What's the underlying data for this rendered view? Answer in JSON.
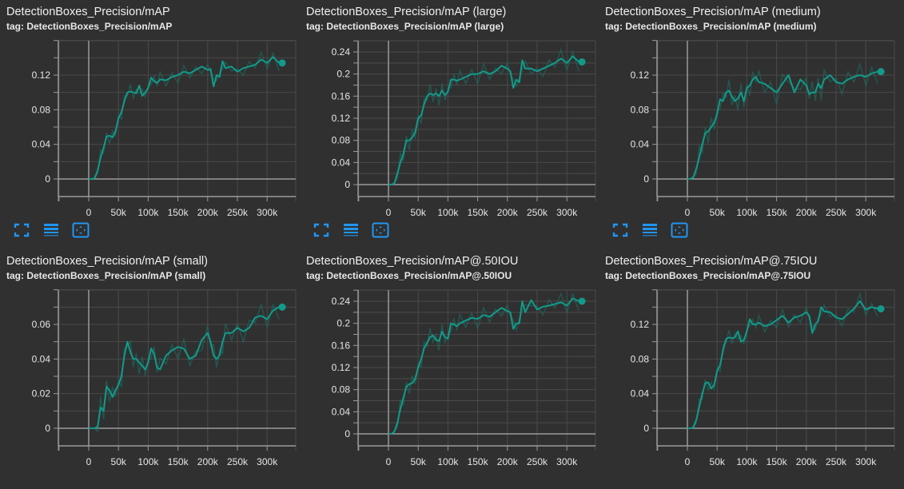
{
  "colors": {
    "background": "#303030",
    "line": "#129a8a",
    "line_raw": "#1a6e63",
    "grid": "#4a4a4a",
    "axis": "#9a9a9a",
    "text": "#e6e6e6",
    "icon": "#2196f3"
  },
  "icons": [
    "fullscreen-icon",
    "data-table-icon",
    "fit-domain-icon"
  ],
  "chart_data": [
    {
      "type": "line",
      "title": "DetectionBoxes_Precision/mAP",
      "tag": "tag: DetectionBoxes_Precision/mAP",
      "xlabel": "",
      "ylabel": "",
      "xticks": [
        "0",
        "50k",
        "100k",
        "150k",
        "200k",
        "250k",
        "300k"
      ],
      "yticks": [
        "0",
        "0.04",
        "0.08",
        "0.12"
      ],
      "ytick_values": [
        0,
        0.04,
        0.08,
        0.12
      ],
      "ylim": [
        -0.02,
        0.15
      ],
      "xlim": [
        -50000,
        350000
      ],
      "grid": true,
      "x": [
        0,
        5000,
        10000,
        15000,
        20000,
        25000,
        30000,
        35000,
        40000,
        45000,
        50000,
        55000,
        60000,
        65000,
        70000,
        75000,
        80000,
        85000,
        90000,
        95000,
        100000,
        105000,
        110000,
        115000,
        120000,
        130000,
        140000,
        150000,
        160000,
        170000,
        180000,
        190000,
        200000,
        205000,
        210000,
        215000,
        220000,
        225000,
        230000,
        240000,
        250000,
        260000,
        270000,
        280000,
        290000,
        300000,
        310000,
        320000
      ],
      "values": [
        0,
        0,
        0.001,
        0.01,
        0.025,
        0.036,
        0.049,
        0.05,
        0.048,
        0.055,
        0.07,
        0.077,
        0.09,
        0.1,
        0.101,
        0.1,
        0.099,
        0.108,
        0.096,
        0.1,
        0.105,
        0.117,
        0.113,
        0.111,
        0.115,
        0.114,
        0.118,
        0.12,
        0.124,
        0.122,
        0.126,
        0.13,
        0.126,
        0.127,
        0.107,
        0.12,
        0.118,
        0.136,
        0.128,
        0.13,
        0.124,
        0.128,
        0.13,
        0.132,
        0.138,
        0.134,
        0.141,
        0.134
      ],
      "raw_spread": 0.008,
      "last_value": 0.134,
      "position": {
        "col": 0,
        "row": 0
      }
    },
    {
      "type": "line",
      "title": "DetectionBoxes_Precision/mAP (large)",
      "tag": "tag: DetectionBoxes_Precision/mAP (large)",
      "xlabel": "",
      "ylabel": "",
      "xticks": [
        "0",
        "50k",
        "100k",
        "150k",
        "200k",
        "250k",
        "300k"
      ],
      "yticks": [
        "0",
        "0.04",
        "0.08",
        "0.12",
        "0.16",
        "0.2",
        "0.24"
      ],
      "ytick_values": [
        0,
        0.04,
        0.08,
        0.12,
        0.16,
        0.2,
        0.24
      ],
      "ylim": [
        -0.02,
        0.26
      ],
      "xlim": [
        -50000,
        350000
      ],
      "grid": true,
      "x": [
        0,
        5000,
        10000,
        15000,
        20000,
        25000,
        30000,
        35000,
        40000,
        45000,
        50000,
        55000,
        60000,
        65000,
        70000,
        75000,
        80000,
        85000,
        90000,
        95000,
        100000,
        105000,
        110000,
        115000,
        120000,
        130000,
        140000,
        150000,
        160000,
        170000,
        180000,
        190000,
        200000,
        205000,
        210000,
        215000,
        220000,
        225000,
        230000,
        240000,
        250000,
        260000,
        270000,
        280000,
        290000,
        300000,
        310000,
        320000
      ],
      "values": [
        0,
        0,
        0.002,
        0.02,
        0.04,
        0.055,
        0.08,
        0.08,
        0.085,
        0.095,
        0.12,
        0.125,
        0.145,
        0.16,
        0.165,
        0.162,
        0.165,
        0.16,
        0.17,
        0.162,
        0.168,
        0.19,
        0.19,
        0.188,
        0.19,
        0.195,
        0.2,
        0.2,
        0.205,
        0.2,
        0.205,
        0.215,
        0.21,
        0.205,
        0.175,
        0.19,
        0.185,
        0.225,
        0.21,
        0.21,
        0.205,
        0.21,
        0.215,
        0.22,
        0.228,
        0.22,
        0.232,
        0.222
      ],
      "raw_spread": 0.015,
      "last_value": 0.222,
      "position": {
        "col": 1,
        "row": 0
      }
    },
    {
      "type": "line",
      "title": "DetectionBoxes_Precision/mAP (medium)",
      "tag": "tag: DetectionBoxes_Precision/mAP (medium)",
      "xlabel": "",
      "ylabel": "",
      "xticks": [
        "0",
        "50k",
        "100k",
        "150k",
        "200k",
        "250k",
        "300k"
      ],
      "yticks": [
        "0",
        "0.04",
        "0.08",
        "0.12"
      ],
      "ytick_values": [
        0,
        0.04,
        0.08,
        0.12
      ],
      "ylim": [
        -0.02,
        0.15
      ],
      "xlim": [
        -50000,
        350000
      ],
      "grid": true,
      "x": [
        0,
        5000,
        10000,
        15000,
        20000,
        25000,
        30000,
        35000,
        40000,
        45000,
        50000,
        55000,
        60000,
        65000,
        70000,
        75000,
        80000,
        85000,
        90000,
        95000,
        100000,
        105000,
        110000,
        115000,
        120000,
        130000,
        140000,
        150000,
        160000,
        170000,
        180000,
        190000,
        200000,
        205000,
        210000,
        215000,
        220000,
        225000,
        230000,
        240000,
        250000,
        260000,
        270000,
        280000,
        290000,
        300000,
        310000,
        320000
      ],
      "values": [
        0,
        0,
        0.002,
        0.012,
        0.025,
        0.04,
        0.053,
        0.055,
        0.06,
        0.065,
        0.075,
        0.092,
        0.09,
        0.1,
        0.102,
        0.095,
        0.09,
        0.093,
        0.1,
        0.09,
        0.105,
        0.108,
        0.115,
        0.118,
        0.112,
        0.11,
        0.105,
        0.1,
        0.11,
        0.12,
        0.1,
        0.115,
        0.108,
        0.098,
        0.1,
        0.1,
        0.11,
        0.105,
        0.115,
        0.12,
        0.112,
        0.11,
        0.115,
        0.118,
        0.12,
        0.118,
        0.122,
        0.124
      ],
      "raw_spread": 0.012,
      "last_value": 0.124,
      "position": {
        "col": 2,
        "row": 0
      }
    },
    {
      "type": "line",
      "title": "DetectionBoxes_Precision/mAP (small)",
      "tag": "tag: DetectionBoxes_Precision/mAP (small)",
      "xlabel": "",
      "ylabel": "",
      "xticks": [
        "0",
        "50k",
        "100k",
        "150k",
        "200k",
        "250k",
        "300k"
      ],
      "yticks": [
        "0",
        "0.02",
        "0.04",
        "0.06"
      ],
      "ytick_values": [
        0,
        0.02,
        0.04,
        0.06
      ],
      "ylim": [
        -0.01,
        0.08
      ],
      "xlim": [
        -50000,
        350000
      ],
      "grid": true,
      "x": [
        0,
        5000,
        10000,
        15000,
        20000,
        25000,
        30000,
        35000,
        40000,
        45000,
        50000,
        55000,
        60000,
        65000,
        70000,
        75000,
        80000,
        85000,
        90000,
        95000,
        100000,
        105000,
        110000,
        115000,
        120000,
        130000,
        140000,
        150000,
        160000,
        170000,
        180000,
        190000,
        200000,
        205000,
        210000,
        215000,
        220000,
        225000,
        230000,
        240000,
        250000,
        260000,
        270000,
        280000,
        290000,
        300000,
        310000,
        320000
      ],
      "values": [
        0,
        0,
        0,
        0.001,
        0.012,
        0.01,
        0.024,
        0.022,
        0.018,
        0.022,
        0.025,
        0.03,
        0.042,
        0.05,
        0.044,
        0.04,
        0.04,
        0.038,
        0.036,
        0.034,
        0.038,
        0.046,
        0.043,
        0.035,
        0.034,
        0.042,
        0.045,
        0.047,
        0.046,
        0.04,
        0.042,
        0.051,
        0.055,
        0.05,
        0.042,
        0.04,
        0.042,
        0.05,
        0.055,
        0.055,
        0.058,
        0.056,
        0.058,
        0.064,
        0.065,
        0.063,
        0.068,
        0.07
      ],
      "raw_spread": 0.006,
      "last_value": 0.07,
      "position": {
        "col": 0,
        "row": 1
      }
    },
    {
      "type": "line",
      "title": "DetectionBoxes_Precision/mAP@.50IOU",
      "tag": "tag: DetectionBoxes_Precision/mAP@.50IOU",
      "xlabel": "",
      "ylabel": "",
      "xticks": [
        "0",
        "50k",
        "100k",
        "150k",
        "200k",
        "250k",
        "300k"
      ],
      "yticks": [
        "0",
        "0.04",
        "0.08",
        "0.12",
        "0.16",
        "0.2",
        "0.24"
      ],
      "ytick_values": [
        0,
        0.04,
        0.08,
        0.12,
        0.16,
        0.2,
        0.24
      ],
      "ylim": [
        -0.02,
        0.26
      ],
      "xlim": [
        -50000,
        350000
      ],
      "grid": true,
      "x": [
        0,
        5000,
        10000,
        15000,
        20000,
        25000,
        30000,
        35000,
        40000,
        45000,
        50000,
        55000,
        60000,
        65000,
        70000,
        75000,
        80000,
        85000,
        90000,
        95000,
        100000,
        105000,
        110000,
        115000,
        120000,
        130000,
        140000,
        150000,
        160000,
        170000,
        180000,
        190000,
        200000,
        205000,
        210000,
        215000,
        220000,
        225000,
        230000,
        240000,
        250000,
        260000,
        270000,
        280000,
        290000,
        300000,
        310000,
        320000
      ],
      "values": [
        0,
        0,
        0.004,
        0.02,
        0.045,
        0.065,
        0.085,
        0.09,
        0.092,
        0.1,
        0.12,
        0.135,
        0.155,
        0.165,
        0.175,
        0.178,
        0.17,
        0.168,
        0.185,
        0.175,
        0.172,
        0.2,
        0.198,
        0.195,
        0.2,
        0.205,
        0.21,
        0.208,
        0.215,
        0.212,
        0.22,
        0.228,
        0.222,
        0.22,
        0.19,
        0.2,
        0.2,
        0.24,
        0.22,
        0.242,
        0.225,
        0.23,
        0.232,
        0.235,
        0.238,
        0.232,
        0.245,
        0.24
      ],
      "raw_spread": 0.015,
      "last_value": 0.24,
      "position": {
        "col": 1,
        "row": 1
      }
    },
    {
      "type": "line",
      "title": "DetectionBoxes_Precision/mAP@.75IOU",
      "tag": "tag: DetectionBoxes_Precision/mAP@.75IOU",
      "xlabel": "",
      "ylabel": "",
      "xticks": [
        "0",
        "50k",
        "100k",
        "150k",
        "200k",
        "250k",
        "300k"
      ],
      "yticks": [
        "0",
        "0.04",
        "0.08",
        "0.12"
      ],
      "ytick_values": [
        0,
        0.04,
        0.08,
        0.12
      ],
      "ylim": [
        -0.02,
        0.15
      ],
      "xlim": [
        -50000,
        350000
      ],
      "grid": true,
      "x": [
        0,
        5000,
        10000,
        15000,
        20000,
        25000,
        30000,
        35000,
        40000,
        45000,
        50000,
        55000,
        60000,
        65000,
        70000,
        75000,
        80000,
        85000,
        90000,
        95000,
        100000,
        105000,
        110000,
        115000,
        120000,
        130000,
        140000,
        150000,
        160000,
        170000,
        180000,
        190000,
        200000,
        205000,
        210000,
        215000,
        220000,
        225000,
        230000,
        240000,
        250000,
        260000,
        270000,
        280000,
        290000,
        300000,
        310000,
        320000
      ],
      "values": [
        0,
        0,
        0.001,
        0.01,
        0.025,
        0.04,
        0.052,
        0.053,
        0.046,
        0.05,
        0.066,
        0.073,
        0.09,
        0.103,
        0.105,
        0.104,
        0.105,
        0.112,
        0.1,
        0.102,
        0.112,
        0.126,
        0.12,
        0.12,
        0.122,
        0.118,
        0.12,
        0.125,
        0.13,
        0.122,
        0.128,
        0.13,
        0.134,
        0.13,
        0.11,
        0.12,
        0.124,
        0.14,
        0.135,
        0.134,
        0.128,
        0.126,
        0.132,
        0.138,
        0.147,
        0.137,
        0.14,
        0.138
      ],
      "raw_spread": 0.008,
      "last_value": 0.138,
      "position": {
        "col": 2,
        "row": 1
      }
    }
  ]
}
